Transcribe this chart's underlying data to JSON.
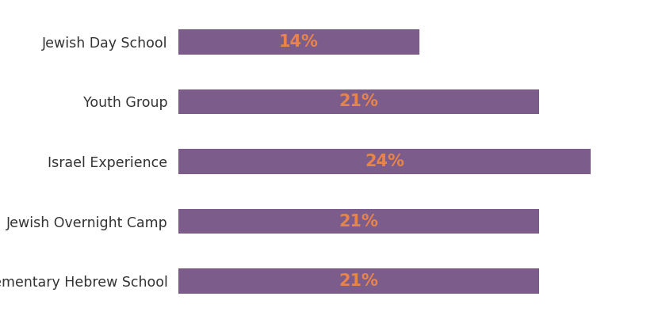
{
  "categories": [
    "Supplementary Hebrew School",
    "Jewish Overnight Camp",
    "Israel Experience",
    "Youth Group",
    "Jewish Day School"
  ],
  "values": [
    21,
    21,
    24,
    21,
    14
  ],
  "labels": [
    "21%",
    "21%",
    "24%",
    "21%",
    "14%"
  ],
  "bar_color": "#7b5c8a",
  "label_color": "#e8834a",
  "background_color": "#ffffff",
  "grid_color": "#d0d0d0",
  "xlim": [
    0,
    27
  ],
  "bar_height": 0.42,
  "label_fontsize": 15,
  "category_fontsize": 12.5,
  "grid_xticks": [
    6.75,
    13.5,
    20.25,
    27
  ]
}
